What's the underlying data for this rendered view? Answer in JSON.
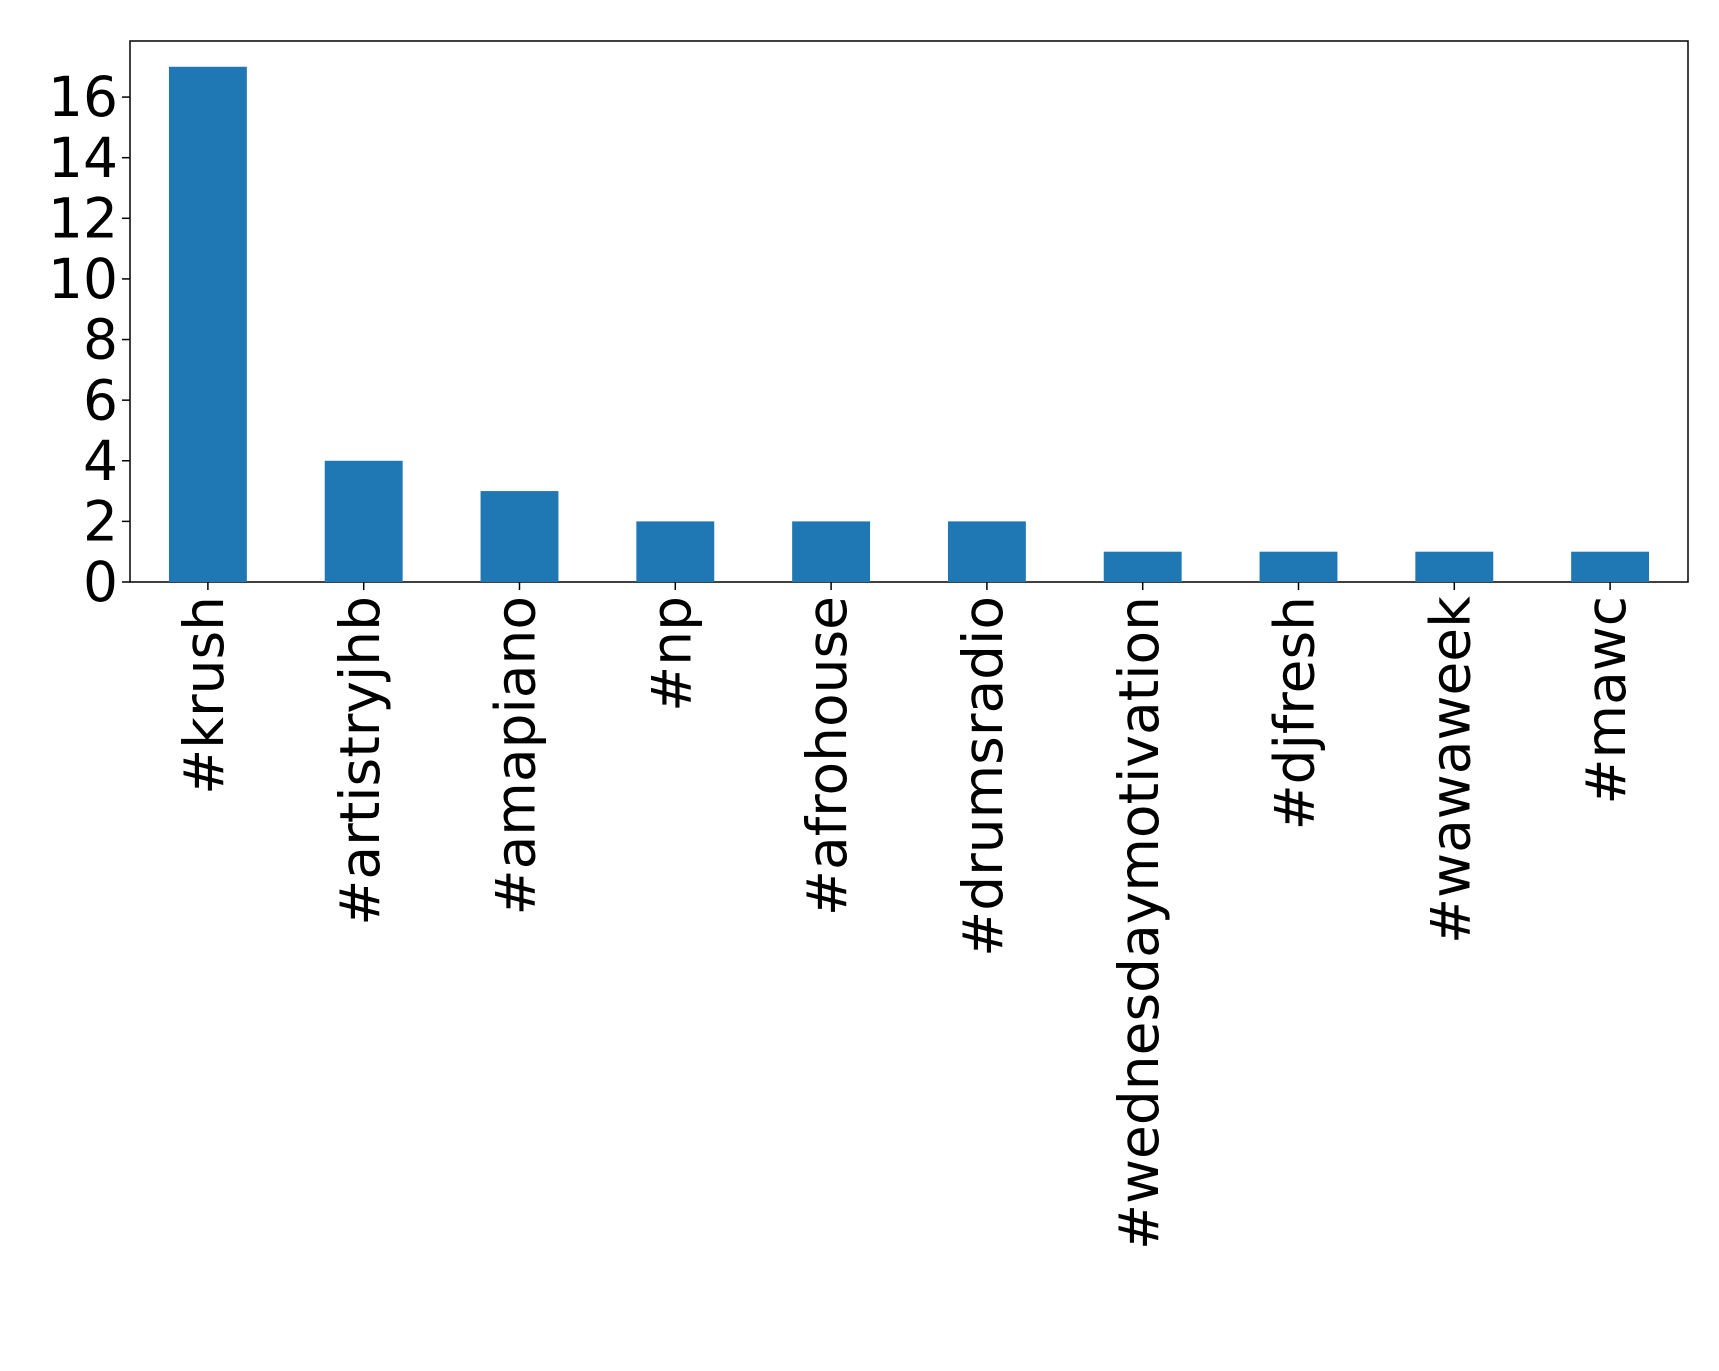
{
  "chart_data": {
    "type": "bar",
    "categories": [
      "#krush",
      "#artistryjhb",
      "#amapiano",
      "#np",
      "#afrohouse",
      "#drumsradio",
      "#wednesdaymotivation",
      "#djfresh",
      "#wawaweek",
      "#mawc"
    ],
    "values": [
      17,
      4,
      3,
      2,
      2,
      2,
      1,
      1,
      1,
      1
    ],
    "color": "#1f77b4",
    "ylim": [
      0,
      17.85
    ],
    "yticks": [
      0,
      2,
      4,
      6,
      8,
      10,
      12,
      14,
      16
    ],
    "grid": false
  }
}
